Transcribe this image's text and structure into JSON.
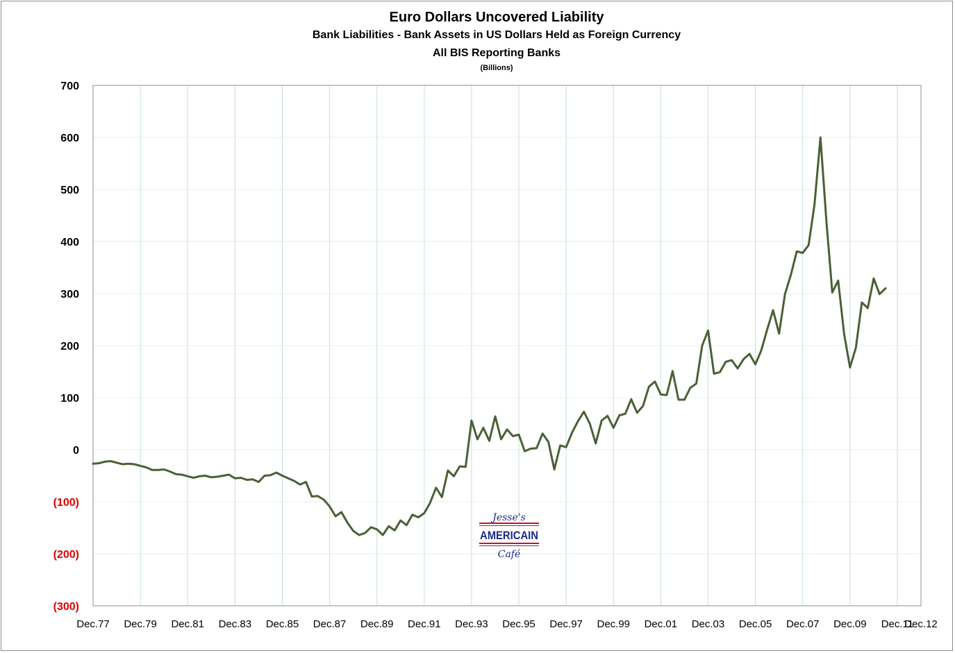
{
  "chart_data": {
    "type": "line",
    "title": "Euro Dollars Uncovered Liability",
    "subtitle": "Bank Liabilities - Bank Assets in US Dollars Held as Foreign Currency",
    "subtitle2": "All BIS Reporting Banks",
    "units": "(Billions)",
    "xlabel": "",
    "ylabel": "",
    "ylim": [
      -300,
      700
    ],
    "yticks": [
      700,
      600,
      500,
      400,
      300,
      200,
      100,
      0,
      -100,
      -200,
      -300
    ],
    "ytick_labels": [
      "700",
      "600",
      "500",
      "400",
      "300",
      "200",
      "100",
      "0",
      "(100)",
      "(200)",
      "(300)"
    ],
    "xlim": [
      1977.917,
      2012.917
    ],
    "xticks": [
      1977.917,
      1979.917,
      1981.917,
      1983.917,
      1985.917,
      1987.917,
      1989.917,
      1991.917,
      1993.917,
      1995.917,
      1997.917,
      1999.917,
      2001.917,
      2003.917,
      2005.917,
      2007.917,
      2009.917,
      2011.917,
      2012.917
    ],
    "xtick_labels": [
      "Dec.77",
      "Dec.79",
      "Dec.81",
      "Dec.83",
      "Dec.85",
      "Dec.87",
      "Dec.89",
      "Dec.91",
      "Dec.93",
      "Dec.95",
      "Dec.97",
      "Dec.99",
      "Dec.01",
      "Dec.03",
      "Dec.05",
      "Dec.07",
      "Dec.09",
      "Dec.11",
      "Dec.12"
    ],
    "grid": {
      "vertical": true,
      "horizontal": true
    },
    "colors": {
      "line": "#4a6035",
      "grid_v": "#c5e0e0",
      "grid_h": "#ececec",
      "negative_tick": "#e00000",
      "positive_tick": "#000000"
    },
    "series": [
      {
        "x": [
          1977.917,
          1978.167,
          1978.417,
          1978.667,
          1978.917,
          1979.167,
          1979.417,
          1979.667,
          1979.917,
          1980.167,
          1980.417,
          1980.667,
          1980.917,
          1981.167,
          1981.417,
          1981.667,
          1981.917,
          1982.167,
          1982.417,
          1982.667,
          1982.917,
          1983.167,
          1983.417,
          1983.667,
          1983.917,
          1984.167,
          1984.417,
          1984.667,
          1984.917,
          1985.167,
          1985.417,
          1985.667,
          1985.917,
          1986.167,
          1986.417,
          1986.667,
          1986.917,
          1987.167,
          1987.417,
          1987.667,
          1987.917,
          1988.167,
          1988.417,
          1988.667,
          1988.917,
          1989.167,
          1989.417,
          1989.667,
          1989.917,
          1990.167,
          1990.417,
          1990.667,
          1990.917,
          1991.167,
          1991.417,
          1991.667,
          1991.917,
          1992.167,
          1992.417,
          1992.667,
          1992.917,
          1993.167,
          1993.417,
          1993.667,
          1993.917,
          1994.167,
          1994.417,
          1994.667,
          1994.917,
          1995.167,
          1995.417,
          1995.667,
          1995.917,
          1996.167,
          1996.417,
          1996.667,
          1996.917,
          1997.167,
          1997.417,
          1997.667,
          1997.917,
          1998.167,
          1998.417,
          1998.667,
          1998.917,
          1999.167,
          1999.417,
          1999.667,
          1999.917,
          2000.167,
          2000.417,
          2000.667,
          2000.917,
          2001.167,
          2001.417,
          2001.667,
          2001.917,
          2002.167,
          2002.417,
          2002.667,
          2002.917,
          2003.167,
          2003.417,
          2003.667,
          2003.917,
          2004.167,
          2004.417,
          2004.667,
          2004.917,
          2005.167,
          2005.417,
          2005.667,
          2005.917,
          2006.167,
          2006.417,
          2006.667,
          2006.917,
          2007.167,
          2007.417,
          2007.667,
          2007.917,
          2008.167,
          2008.417,
          2008.667,
          2008.917,
          2009.167,
          2009.417,
          2009.667,
          2009.917,
          2010.167,
          2010.417,
          2010.667,
          2010.917,
          2011.167,
          2011.417
        ],
        "y": [
          -27,
          -26,
          -23,
          -22,
          -25,
          -28,
          -27,
          -28,
          -31,
          -34,
          -39,
          -39,
          -38,
          -42,
          -47,
          -48,
          -51,
          -54,
          -51,
          -50,
          -53,
          -52,
          -50,
          -48,
          -55,
          -54,
          -58,
          -57,
          -62,
          -50,
          -49,
          -44,
          -50,
          -55,
          -60,
          -67,
          -62,
          -90,
          -89,
          -96,
          -109,
          -128,
          -120,
          -140,
          -156,
          -164,
          -160,
          -149,
          -153,
          -164,
          -147,
          -155,
          -136,
          -145,
          -125,
          -130,
          -122,
          -102,
          -73,
          -91,
          -40,
          -51,
          -32,
          -33,
          56,
          20,
          42,
          17,
          64,
          20,
          39,
          26,
          29,
          -3,
          2,
          3,
          31,
          15,
          -38,
          8,
          5,
          33,
          55,
          73,
          50,
          12,
          56,
          65,
          42,
          66,
          69,
          97,
          71,
          84,
          121,
          131,
          106,
          105,
          151,
          96,
          96,
          119,
          127,
          200,
          229,
          146,
          149,
          169,
          172,
          156,
          174,
          184,
          164,
          191,
          231,
          268,
          223,
          299,
          336,
          381,
          378,
          393,
          471,
          600,
          440,
          302,
          325,
          223,
          158,
          196,
          283,
          272,
          329,
          299,
          310
        ]
      }
    ]
  },
  "logo": {
    "line1": "Jesse's",
    "line2": "AMERICAIN",
    "line3": "Café",
    "colors": {
      "text": "#1a2a8a",
      "stripe": "#c8102e"
    }
  }
}
